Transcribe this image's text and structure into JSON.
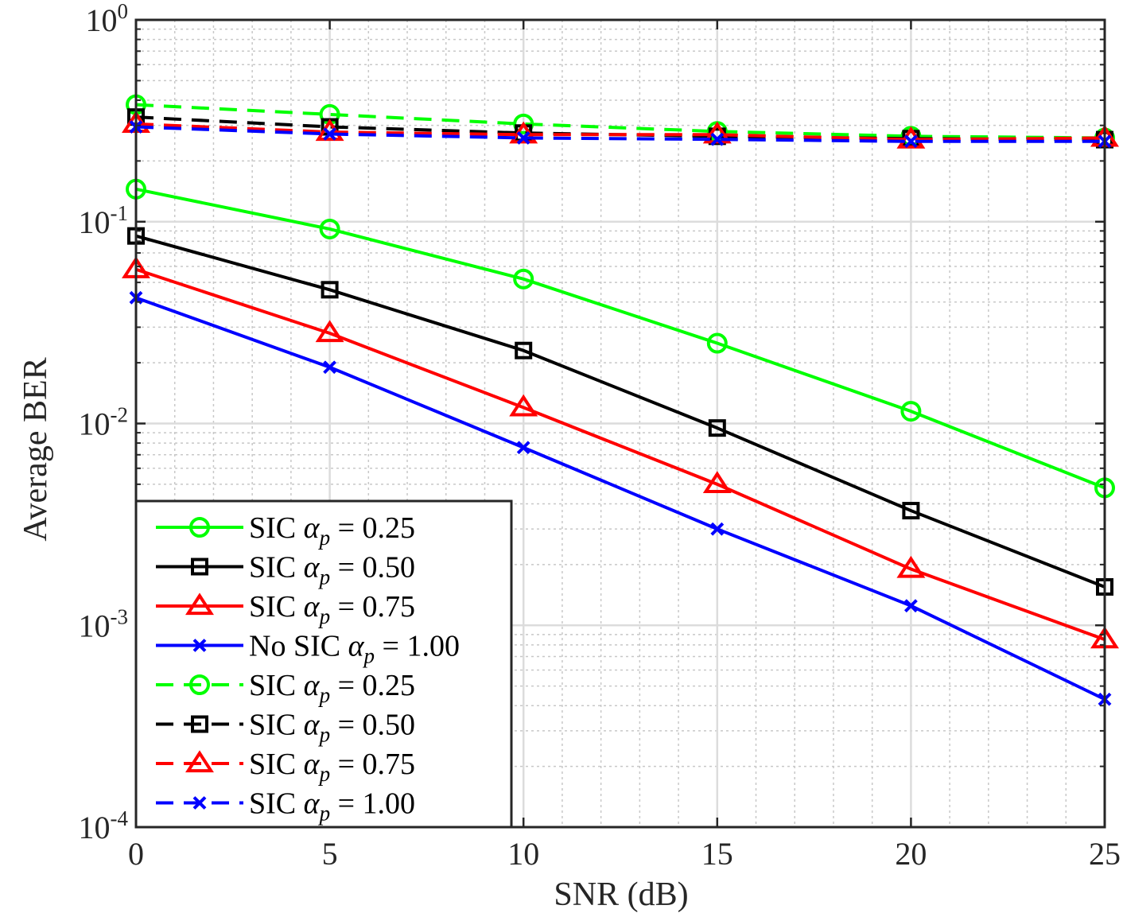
{
  "chart_data": {
    "type": "line",
    "title": "",
    "xlabel": "SNR (dB)",
    "ylabel": "Average BER",
    "xlim": [
      0,
      25
    ],
    "ylim": [
      0.0001,
      1
    ],
    "yscale": "log",
    "grid": true,
    "minor_grid": true,
    "legend_position": "bottom-left",
    "x": [
      0,
      5,
      10,
      15,
      20,
      25
    ],
    "x_ticks": [
      "0",
      "5",
      "10",
      "15",
      "20",
      "25"
    ],
    "y_ticks": [
      {
        "base": "10",
        "exp": "0",
        "value": 1
      },
      {
        "base": "10",
        "exp": "-1",
        "value": 0.1
      },
      {
        "base": "10",
        "exp": "-2",
        "value": 0.01
      },
      {
        "base": "10",
        "exp": "-3",
        "value": 0.001
      },
      {
        "base": "10",
        "exp": "-4",
        "value": 0.0001
      }
    ],
    "series": [
      {
        "prefix": "SIC",
        "alpha_value": "0.25",
        "color": "#00ff00",
        "marker": "circle",
        "dash": "solid",
        "values": [
          0.145,
          0.092,
          0.052,
          0.025,
          0.0115,
          0.0048
        ]
      },
      {
        "prefix": "SIC",
        "alpha_value": "0.50",
        "color": "#000000",
        "marker": "square",
        "dash": "solid",
        "values": [
          0.085,
          0.046,
          0.023,
          0.0095,
          0.0037,
          0.00155
        ]
      },
      {
        "prefix": "SIC",
        "alpha_value": "0.75",
        "color": "#ff0000",
        "marker": "triangle",
        "dash": "solid",
        "values": [
          0.058,
          0.028,
          0.012,
          0.005,
          0.0019,
          0.00085
        ]
      },
      {
        "prefix": "No SIC",
        "alpha_value": "1.00",
        "color": "#0000ff",
        "marker": "x",
        "dash": "solid",
        "values": [
          0.042,
          0.019,
          0.0076,
          0.003,
          0.00125,
          0.00043
        ]
      },
      {
        "prefix": "SIC",
        "alpha_value": "0.25",
        "color": "#00ff00",
        "marker": "circle",
        "dash": "dashed",
        "values": [
          0.38,
          0.34,
          0.305,
          0.28,
          0.265,
          0.26
        ]
      },
      {
        "prefix": "SIC",
        "alpha_value": "0.50",
        "color": "#000000",
        "marker": "square",
        "dash": "dashed",
        "values": [
          0.33,
          0.295,
          0.275,
          0.265,
          0.258,
          0.255
        ]
      },
      {
        "prefix": "SIC",
        "alpha_value": "0.75",
        "color": "#ff0000",
        "marker": "triangle",
        "dash": "dashed",
        "values": [
          0.305,
          0.278,
          0.27,
          0.27,
          0.255,
          0.26
        ]
      },
      {
        "prefix": "SIC",
        "alpha_value": "1.00",
        "color": "#0000ff",
        "marker": "x",
        "dash": "dashed",
        "values": [
          0.295,
          0.272,
          0.26,
          0.256,
          0.25,
          0.25
        ]
      }
    ]
  }
}
